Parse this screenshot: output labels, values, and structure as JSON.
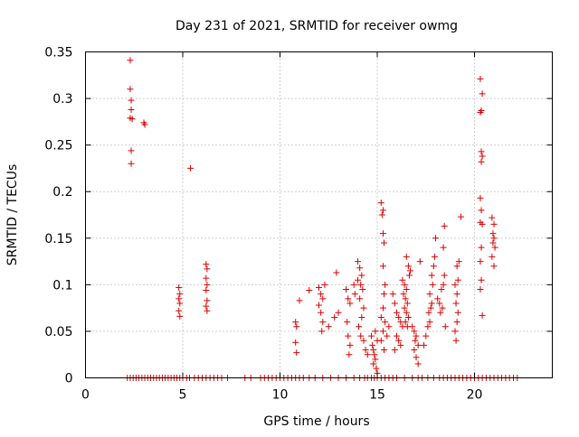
{
  "chart_data": {
    "type": "scatter",
    "title": "Day 231 of 2021, SRMTID for receiver owmg",
    "xlabel": "GPS time / hours",
    "ylabel": "SRMTID / TECUs",
    "xlim": [
      0,
      24
    ],
    "ylim": [
      0,
      0.35
    ],
    "xticks": [
      0,
      5,
      10,
      15,
      20
    ],
    "xtick_labels": [
      "0",
      "5",
      "10",
      "15",
      "20"
    ],
    "yticks": [
      0,
      0.05,
      0.1,
      0.15,
      0.2,
      0.25,
      0.3,
      0.35
    ],
    "ytick_labels": [
      "0",
      "0.05",
      "0.1",
      "0.15",
      "0.2",
      "0.25",
      "0.3",
      "0.35"
    ],
    "grid": true,
    "marker": "+",
    "color": "#dd0000",
    "series": [
      {
        "name": "SRMTID",
        "points": [
          [
            2.3,
            0.341
          ],
          [
            2.3,
            0.31
          ],
          [
            2.35,
            0.298
          ],
          [
            2.35,
            0.288
          ],
          [
            2.3,
            0.279
          ],
          [
            2.4,
            0.278
          ],
          [
            2.35,
            0.244
          ],
          [
            2.35,
            0.23
          ],
          [
            3.0,
            0.274
          ],
          [
            3.05,
            0.272
          ],
          [
            5.4,
            0.225
          ],
          [
            4.8,
            0.097
          ],
          [
            4.85,
            0.09
          ],
          [
            4.8,
            0.085
          ],
          [
            4.85,
            0.08
          ],
          [
            4.8,
            0.072
          ],
          [
            4.85,
            0.066
          ],
          [
            6.2,
            0.122
          ],
          [
            6.25,
            0.117
          ],
          [
            6.2,
            0.107
          ],
          [
            6.25,
            0.1
          ],
          [
            6.2,
            0.094
          ],
          [
            6.25,
            0.083
          ],
          [
            6.2,
            0.077
          ],
          [
            6.25,
            0.072
          ],
          [
            10.8,
            0.06
          ],
          [
            10.85,
            0.055
          ],
          [
            10.8,
            0.038
          ],
          [
            10.85,
            0.027
          ],
          [
            11.0,
            0.083
          ],
          [
            11.5,
            0.094
          ],
          [
            12.0,
            0.097
          ],
          [
            12.1,
            0.09
          ],
          [
            12.2,
            0.085
          ],
          [
            12.0,
            0.078
          ],
          [
            12.1,
            0.07
          ],
          [
            12.2,
            0.06
          ],
          [
            12.15,
            0.05
          ],
          [
            12.3,
            0.1
          ],
          [
            12.5,
            0.055
          ],
          [
            12.9,
            0.113
          ],
          [
            12.8,
            0.065
          ],
          [
            13.0,
            0.07
          ],
          [
            13.4,
            0.095
          ],
          [
            13.5,
            0.085
          ],
          [
            13.6,
            0.08
          ],
          [
            13.45,
            0.06
          ],
          [
            13.5,
            0.045
          ],
          [
            13.6,
            0.035
          ],
          [
            13.55,
            0.025
          ],
          [
            13.8,
            0.1
          ],
          [
            13.85,
            0.09
          ],
          [
            14.0,
            0.125
          ],
          [
            14.1,
            0.118
          ],
          [
            14.2,
            0.11
          ],
          [
            14.0,
            0.105
          ],
          [
            14.15,
            0.1
          ],
          [
            14.25,
            0.095
          ],
          [
            14.1,
            0.085
          ],
          [
            14.3,
            0.075
          ],
          [
            14.2,
            0.065
          ],
          [
            14.05,
            0.055
          ],
          [
            14.15,
            0.045
          ],
          [
            14.3,
            0.04
          ],
          [
            14.4,
            0.03
          ],
          [
            14.5,
            0.025
          ],
          [
            14.7,
            0.045
          ],
          [
            14.75,
            0.035
          ],
          [
            14.8,
            0.03
          ],
          [
            14.85,
            0.025
          ],
          [
            14.9,
            0.02
          ],
          [
            14.8,
            0.015
          ],
          [
            14.95,
            0.01
          ],
          [
            15.0,
            0.005
          ],
          [
            14.9,
            0.05
          ],
          [
            15.0,
            0.04
          ],
          [
            15.2,
            0.188
          ],
          [
            15.3,
            0.18
          ],
          [
            15.25,
            0.175
          ],
          [
            15.3,
            0.155
          ],
          [
            15.35,
            0.145
          ],
          [
            15.3,
            0.12
          ],
          [
            15.4,
            0.1
          ],
          [
            15.35,
            0.09
          ],
          [
            15.3,
            0.075
          ],
          [
            15.2,
            0.065
          ],
          [
            15.4,
            0.06
          ],
          [
            15.3,
            0.05
          ],
          [
            15.2,
            0.04
          ],
          [
            15.35,
            0.03
          ],
          [
            15.5,
            0.045
          ],
          [
            15.6,
            0.055
          ],
          [
            15.8,
            0.09
          ],
          [
            15.9,
            0.08
          ],
          [
            16.0,
            0.07
          ],
          [
            16.1,
            0.065
          ],
          [
            16.2,
            0.06
          ],
          [
            16.3,
            0.055
          ],
          [
            16.0,
            0.045
          ],
          [
            16.1,
            0.04
          ],
          [
            16.2,
            0.035
          ],
          [
            15.9,
            0.03
          ],
          [
            16.3,
            0.105
          ],
          [
            16.4,
            0.1
          ],
          [
            16.5,
            0.095
          ],
          [
            16.35,
            0.09
          ],
          [
            16.45,
            0.085
          ],
          [
            16.55,
            0.08
          ],
          [
            16.4,
            0.075
          ],
          [
            16.5,
            0.07
          ],
          [
            16.6,
            0.065
          ],
          [
            16.45,
            0.06
          ],
          [
            16.55,
            0.055
          ],
          [
            16.5,
            0.13
          ],
          [
            16.6,
            0.12
          ],
          [
            16.7,
            0.115
          ],
          [
            16.65,
            0.11
          ],
          [
            16.8,
            0.055
          ],
          [
            16.9,
            0.05
          ],
          [
            17.0,
            0.045
          ],
          [
            16.95,
            0.04
          ],
          [
            17.1,
            0.035
          ],
          [
            16.9,
            0.03
          ],
          [
            17.0,
            0.022
          ],
          [
            17.1,
            0.015
          ],
          [
            17.2,
            0.125
          ],
          [
            17.4,
            0.035
          ],
          [
            17.5,
            0.045
          ],
          [
            17.6,
            0.055
          ],
          [
            17.7,
            0.06
          ],
          [
            17.65,
            0.07
          ],
          [
            17.75,
            0.075
          ],
          [
            17.8,
            0.08
          ],
          [
            17.7,
            0.09
          ],
          [
            17.85,
            0.1
          ],
          [
            17.8,
            0.11
          ],
          [
            17.9,
            0.12
          ],
          [
            17.95,
            0.13
          ],
          [
            18.0,
            0.15
          ],
          [
            18.1,
            0.085
          ],
          [
            18.2,
            0.08
          ],
          [
            18.3,
            0.095
          ],
          [
            18.25,
            0.07
          ],
          [
            18.35,
            0.075
          ],
          [
            18.4,
            0.1
          ],
          [
            18.45,
            0.11
          ],
          [
            18.4,
            0.14
          ],
          [
            18.45,
            0.163
          ],
          [
            18.5,
            0.055
          ],
          [
            19.0,
            0.1
          ],
          [
            19.1,
            0.09
          ],
          [
            19.05,
            0.08
          ],
          [
            19.15,
            0.07
          ],
          [
            19.1,
            0.06
          ],
          [
            19.0,
            0.05
          ],
          [
            19.05,
            0.04
          ],
          [
            19.1,
            0.12
          ],
          [
            19.2,
            0.125
          ],
          [
            19.15,
            0.105
          ],
          [
            19.3,
            0.173
          ],
          [
            20.3,
            0.321
          ],
          [
            20.4,
            0.305
          ],
          [
            20.35,
            0.287
          ],
          [
            20.3,
            0.285
          ],
          [
            20.35,
            0.243
          ],
          [
            20.4,
            0.238
          ],
          [
            20.35,
            0.232
          ],
          [
            20.3,
            0.193
          ],
          [
            20.35,
            0.18
          ],
          [
            20.3,
            0.167
          ],
          [
            20.4,
            0.165
          ],
          [
            20.35,
            0.14
          ],
          [
            20.3,
            0.125
          ],
          [
            20.35,
            0.105
          ],
          [
            20.3,
            0.095
          ],
          [
            20.4,
            0.067
          ],
          [
            20.9,
            0.172
          ],
          [
            21.0,
            0.165
          ],
          [
            20.95,
            0.155
          ],
          [
            21.0,
            0.15
          ],
          [
            20.95,
            0.145
          ],
          [
            21.05,
            0.14
          ],
          [
            20.9,
            0.13
          ],
          [
            21.0,
            0.12
          ]
        ],
        "zeros": {
          "value": 0,
          "x": [
            2.15,
            2.3,
            2.45,
            2.6,
            2.75,
            2.9,
            3.05,
            3.2,
            3.35,
            3.5,
            3.65,
            3.8,
            3.95,
            4.1,
            4.25,
            4.4,
            4.55,
            4.7,
            4.85,
            5.0,
            5.2,
            5.35,
            5.6,
            5.8,
            6.0,
            6.2,
            6.4,
            6.6,
            6.8,
            7.0,
            7.3,
            8.2,
            8.5,
            9.0,
            9.2,
            9.4,
            9.6,
            9.8,
            10.0,
            10.2,
            10.4,
            10.6,
            10.8,
            11.0,
            11.2,
            11.5,
            11.8,
            12.2,
            12.6,
            13.0,
            13.4,
            13.8,
            14.1,
            14.35,
            14.5,
            14.7,
            14.85,
            15.0,
            15.2,
            15.4,
            15.6,
            15.8,
            16.0,
            16.4,
            16.8,
            17.1,
            17.3,
            17.6,
            17.9,
            18.2,
            18.4,
            18.6,
            18.8,
            19.0,
            19.2,
            19.4,
            19.6,
            19.8,
            20.0,
            20.2,
            20.4,
            20.6,
            20.8,
            21.0,
            21.2,
            21.4,
            21.6,
            21.8,
            22.0,
            22.2
          ]
        }
      }
    ]
  }
}
